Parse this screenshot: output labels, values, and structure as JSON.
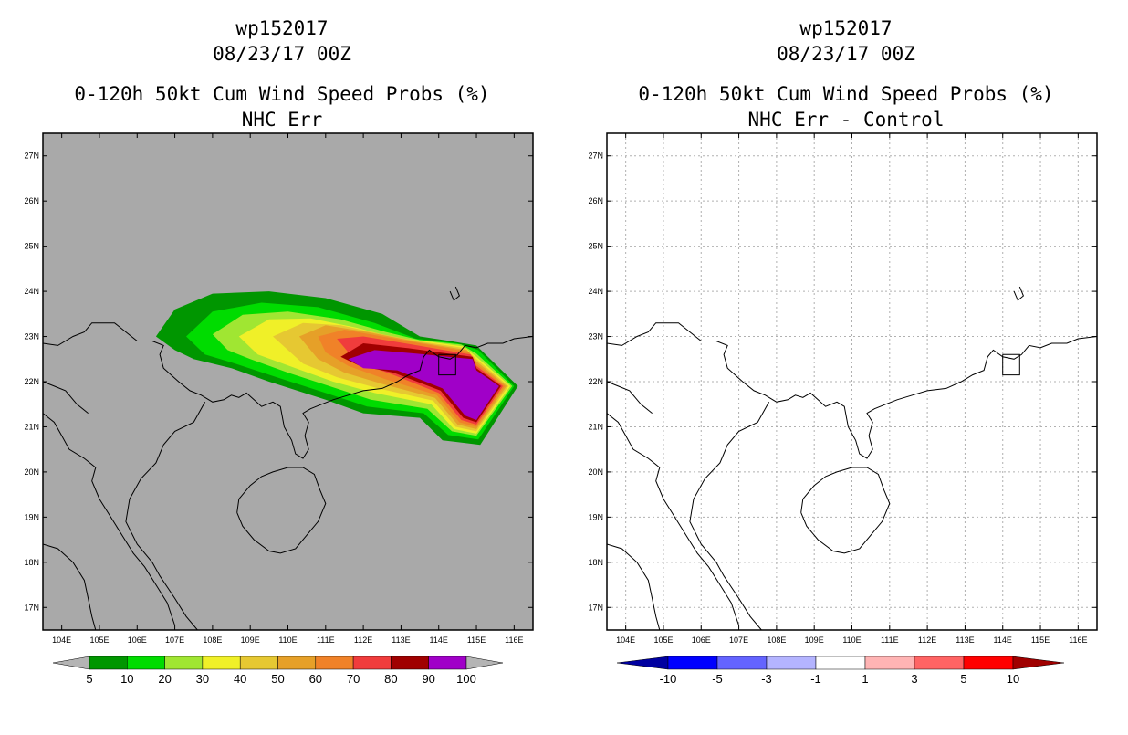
{
  "left_panel": {
    "title_line1": "wp152017",
    "title_line2": "08/23/17 00Z",
    "title_line3": "0-120h 50kt Cum Wind Speed Probs (%)",
    "title_line4": "NHC Err",
    "background_color": "#a9a9a9",
    "colorbar_labels": [
      "5",
      "10",
      "20",
      "30",
      "40",
      "50",
      "60",
      "70",
      "80",
      "90",
      "100"
    ],
    "colorbar_colors": [
      "#009600",
      "#00dc00",
      "#a0e632",
      "#f0f028",
      "#e6c832",
      "#e6a028",
      "#f08228",
      "#f03c3c",
      "#a00000",
      "#a000c8"
    ],
    "colorbar_end_color": "#b4b4b4"
  },
  "right_panel": {
    "title_line1": "wp152017",
    "title_line2": "08/23/17 00Z",
    "title_line3": "0-120h 50kt Cum Wind Speed Probs (%)",
    "title_line4": "NHC Err - Control",
    "background_color": "#ffffff",
    "colorbar_labels": [
      "-10",
      "-5",
      "-3",
      "-1",
      "1",
      "3",
      "5",
      "10"
    ],
    "colorbar_colors": [
      "#0000a0",
      "#0000ff",
      "#6464ff",
      "#b4b4ff",
      "#ffffff",
      "#ffb4b4",
      "#ff6464",
      "#ff0000",
      "#a00000"
    ]
  },
  "map_axes": {
    "lon_labels": [
      "104E",
      "105E",
      "106E",
      "107E",
      "108E",
      "109E",
      "110E",
      "111E",
      "112E",
      "113E",
      "114E",
      "115E",
      "116E"
    ],
    "lat_labels": [
      "17N",
      "18N",
      "19N",
      "20N",
      "21N",
      "22N",
      "23N",
      "24N",
      "25N",
      "26N",
      "27N"
    ],
    "lon_range": [
      103.5,
      116.5
    ],
    "lat_range": [
      16.5,
      27.5
    ]
  },
  "probability_field": {
    "levels": [
      {
        "name": "5",
        "color": "#009600",
        "outline": [
          [
            106.5,
            23.0
          ],
          [
            107.0,
            23.6
          ],
          [
            108.0,
            23.95
          ],
          [
            109.5,
            24.0
          ],
          [
            111.0,
            23.85
          ],
          [
            112.5,
            23.5
          ],
          [
            113.5,
            23.0
          ],
          [
            114.3,
            22.9
          ],
          [
            115.0,
            22.8
          ],
          [
            116.1,
            21.9
          ],
          [
            115.1,
            20.6
          ],
          [
            114.1,
            20.7
          ],
          [
            113.5,
            21.2
          ],
          [
            112.0,
            21.3
          ],
          [
            111.0,
            21.6
          ],
          [
            109.5,
            22.0
          ],
          [
            108.5,
            22.3
          ],
          [
            107.5,
            22.5
          ],
          [
            107.0,
            22.7
          ]
        ]
      },
      {
        "name": "10",
        "color": "#00dc00",
        "outline": [
          [
            107.3,
            23.0
          ],
          [
            108.0,
            23.55
          ],
          [
            109.3,
            23.75
          ],
          [
            110.8,
            23.65
          ],
          [
            112.3,
            23.3
          ],
          [
            113.4,
            22.95
          ],
          [
            114.5,
            22.85
          ],
          [
            115.05,
            22.7
          ],
          [
            116.0,
            21.9
          ],
          [
            115.05,
            20.72
          ],
          [
            114.25,
            20.82
          ],
          [
            113.6,
            21.3
          ],
          [
            112.1,
            21.45
          ],
          [
            111.0,
            21.75
          ],
          [
            109.7,
            22.1
          ],
          [
            108.6,
            22.4
          ],
          [
            107.8,
            22.6
          ]
        ]
      },
      {
        "name": "20",
        "color": "#a0e632",
        "outline": [
          [
            108.0,
            23.05
          ],
          [
            108.8,
            23.48
          ],
          [
            110.0,
            23.55
          ],
          [
            111.4,
            23.38
          ],
          [
            112.6,
            23.1
          ],
          [
            113.5,
            22.92
          ],
          [
            114.6,
            22.82
          ],
          [
            115.0,
            22.62
          ],
          [
            115.95,
            21.9
          ],
          [
            115.0,
            20.8
          ],
          [
            114.35,
            20.9
          ],
          [
            113.7,
            21.4
          ],
          [
            112.2,
            21.6
          ],
          [
            111.1,
            21.9
          ],
          [
            110.0,
            22.2
          ],
          [
            109.0,
            22.5
          ],
          [
            108.4,
            22.7
          ]
        ]
      },
      {
        "name": "30",
        "color": "#f0f028",
        "outline": [
          [
            108.7,
            23.0
          ],
          [
            109.5,
            23.38
          ],
          [
            110.6,
            23.4
          ],
          [
            111.8,
            23.2
          ],
          [
            112.8,
            22.98
          ],
          [
            113.6,
            22.9
          ],
          [
            114.65,
            22.78
          ],
          [
            115.0,
            22.55
          ],
          [
            115.9,
            21.9
          ],
          [
            115.0,
            20.85
          ],
          [
            114.4,
            20.95
          ],
          [
            113.8,
            21.5
          ],
          [
            112.3,
            21.75
          ],
          [
            111.2,
            22.0
          ],
          [
            110.2,
            22.3
          ],
          [
            109.2,
            22.6
          ]
        ]
      },
      {
        "name": "40",
        "color": "#e6c832",
        "outline": [
          [
            109.6,
            23.0
          ],
          [
            110.4,
            23.3
          ],
          [
            111.4,
            23.25
          ],
          [
            112.5,
            23.05
          ],
          [
            113.6,
            22.88
          ],
          [
            114.7,
            22.74
          ],
          [
            115.0,
            22.5
          ],
          [
            115.85,
            21.9
          ],
          [
            115.0,
            20.9
          ],
          [
            114.45,
            21.0
          ],
          [
            113.85,
            21.58
          ],
          [
            112.4,
            21.85
          ],
          [
            111.3,
            22.1
          ],
          [
            110.4,
            22.4
          ]
        ]
      },
      {
        "name": "50",
        "color": "#e6a028",
        "outline": [
          [
            110.3,
            23.0
          ],
          [
            111.0,
            23.25
          ],
          [
            112.1,
            23.1
          ],
          [
            113.5,
            22.87
          ],
          [
            114.75,
            22.7
          ],
          [
            115.0,
            22.45
          ],
          [
            115.8,
            21.9
          ],
          [
            115.0,
            20.95
          ],
          [
            114.5,
            21.05
          ],
          [
            113.9,
            21.64
          ],
          [
            112.5,
            21.95
          ],
          [
            111.5,
            22.2
          ],
          [
            110.8,
            22.5
          ]
        ]
      },
      {
        "name": "60",
        "color": "#f08228",
        "outline": [
          [
            110.8,
            23.0
          ],
          [
            111.5,
            23.15
          ],
          [
            112.5,
            23.0
          ],
          [
            113.5,
            22.85
          ],
          [
            114.8,
            22.66
          ],
          [
            115.0,
            22.4
          ],
          [
            115.75,
            21.9
          ],
          [
            115.0,
            21.0
          ],
          [
            114.55,
            21.1
          ],
          [
            113.95,
            21.7
          ],
          [
            112.6,
            22.05
          ],
          [
            111.6,
            22.35
          ],
          [
            111.0,
            22.65
          ]
        ]
      },
      {
        "name": "70",
        "color": "#f03c3c",
        "outline": [
          [
            111.3,
            22.95
          ],
          [
            112.0,
            23.0
          ],
          [
            113.3,
            22.82
          ],
          [
            114.85,
            22.6
          ],
          [
            115.0,
            22.35
          ],
          [
            115.7,
            21.9
          ],
          [
            115.0,
            21.05
          ],
          [
            114.6,
            21.15
          ],
          [
            114.0,
            21.75
          ],
          [
            112.8,
            22.15
          ],
          [
            111.8,
            22.45
          ]
        ]
      },
      {
        "name": "80",
        "color": "#a00000",
        "outline": [
          [
            111.4,
            22.55
          ],
          [
            112.0,
            22.85
          ],
          [
            113.2,
            22.74
          ],
          [
            114.9,
            22.55
          ],
          [
            115.0,
            22.3
          ],
          [
            115.65,
            21.9
          ],
          [
            115.0,
            21.1
          ],
          [
            114.65,
            21.2
          ],
          [
            114.05,
            21.8
          ],
          [
            112.8,
            22.2
          ],
          [
            111.9,
            22.35
          ]
        ]
      },
      {
        "name": "90",
        "color": "#a000c8",
        "outline": [
          [
            111.6,
            22.5
          ],
          [
            112.3,
            22.7
          ],
          [
            113.4,
            22.62
          ],
          [
            114.9,
            22.5
          ],
          [
            115.0,
            22.25
          ],
          [
            115.6,
            21.9
          ],
          [
            115.0,
            21.15
          ],
          [
            114.7,
            21.25
          ],
          [
            114.1,
            21.85
          ],
          [
            112.9,
            22.25
          ],
          [
            112.0,
            22.3
          ]
        ]
      }
    ]
  },
  "coastlines": [
    [
      [
        103.5,
        22.85
      ],
      [
        103.9,
        22.8
      ],
      [
        104.3,
        23.0
      ],
      [
        104.6,
        23.1
      ],
      [
        104.8,
        23.3
      ],
      [
        105.1,
        23.3
      ],
      [
        105.4,
        23.3
      ],
      [
        105.7,
        23.1
      ],
      [
        106.0,
        22.9
      ],
      [
        106.4,
        22.9
      ],
      [
        106.7,
        22.8
      ],
      [
        106.6,
        22.6
      ],
      [
        106.7,
        22.3
      ],
      [
        107.1,
        22.0
      ],
      [
        107.4,
        21.8
      ],
      [
        107.7,
        21.7
      ],
      [
        108.0,
        21.55
      ],
      [
        108.3,
        21.6
      ],
      [
        108.5,
        21.7
      ],
      [
        108.7,
        21.65
      ],
      [
        108.9,
        21.75
      ],
      [
        109.1,
        21.6
      ],
      [
        109.3,
        21.45
      ],
      [
        109.6,
        21.55
      ],
      [
        109.8,
        21.45
      ],
      [
        109.9,
        21.0
      ],
      [
        110.1,
        20.7
      ],
      [
        110.2,
        20.4
      ],
      [
        110.4,
        20.3
      ],
      [
        110.55,
        20.5
      ],
      [
        110.45,
        20.8
      ],
      [
        110.55,
        21.1
      ],
      [
        110.4,
        21.3
      ],
      [
        110.6,
        21.4
      ],
      [
        110.9,
        21.5
      ],
      [
        111.2,
        21.6
      ],
      [
        111.6,
        21.7
      ],
      [
        112.0,
        21.8
      ],
      [
        112.5,
        21.85
      ],
      [
        112.9,
        22.0
      ],
      [
        113.2,
        22.15
      ],
      [
        113.5,
        22.25
      ],
      [
        113.6,
        22.55
      ],
      [
        113.75,
        22.7
      ],
      [
        114.0,
        22.55
      ],
      [
        114.3,
        22.5
      ],
      [
        114.5,
        22.6
      ],
      [
        114.7,
        22.8
      ],
      [
        115.0,
        22.75
      ],
      [
        115.3,
        22.85
      ],
      [
        115.7,
        22.85
      ],
      [
        116.0,
        22.95
      ],
      [
        116.5,
        23.0
      ]
    ],
    [
      [
        108.65,
        19.1
      ],
      [
        108.7,
        19.4
      ],
      [
        109.0,
        19.7
      ],
      [
        109.3,
        19.9
      ],
      [
        109.6,
        20.0
      ],
      [
        110.0,
        20.1
      ],
      [
        110.4,
        20.1
      ],
      [
        110.7,
        19.95
      ],
      [
        110.85,
        19.6
      ],
      [
        111.0,
        19.3
      ],
      [
        110.8,
        18.9
      ],
      [
        110.5,
        18.6
      ],
      [
        110.2,
        18.3
      ],
      [
        109.8,
        18.2
      ],
      [
        109.5,
        18.25
      ],
      [
        109.1,
        18.5
      ],
      [
        108.8,
        18.8
      ],
      [
        108.65,
        19.1
      ]
    ],
    [
      [
        107.8,
        21.55
      ],
      [
        107.5,
        21.1
      ],
      [
        107.0,
        20.9
      ],
      [
        106.7,
        20.6
      ],
      [
        106.5,
        20.2
      ],
      [
        106.1,
        19.85
      ],
      [
        105.8,
        19.4
      ],
      [
        105.7,
        18.9
      ],
      [
        106.0,
        18.4
      ],
      [
        106.4,
        18.0
      ],
      [
        106.6,
        17.7
      ],
      [
        107.0,
        17.2
      ],
      [
        107.3,
        16.8
      ],
      [
        107.6,
        16.5
      ]
    ],
    [
      [
        103.5,
        21.3
      ],
      [
        103.8,
        21.1
      ],
      [
        104.0,
        20.8
      ],
      [
        104.2,
        20.5
      ],
      [
        104.6,
        20.3
      ],
      [
        104.9,
        20.1
      ],
      [
        104.8,
        19.8
      ],
      [
        105.0,
        19.4
      ],
      [
        105.3,
        19.0
      ],
      [
        105.6,
        18.6
      ],
      [
        105.9,
        18.2
      ],
      [
        106.2,
        17.9
      ],
      [
        106.5,
        17.5
      ],
      [
        106.8,
        17.1
      ],
      [
        107.0,
        16.6
      ]
    ],
    [
      [
        103.5,
        18.4
      ],
      [
        103.9,
        18.3
      ],
      [
        104.3,
        18.0
      ],
      [
        104.6,
        17.6
      ],
      [
        104.7,
        17.2
      ],
      [
        104.8,
        16.8
      ],
      [
        104.9,
        16.5
      ]
    ],
    [
      [
        103.5,
        22.0
      ],
      [
        103.8,
        21.9
      ],
      [
        104.1,
        21.8
      ],
      [
        104.4,
        21.5
      ],
      [
        104.7,
        21.3
      ]
    ],
    [
      [
        114.0,
        22.6
      ],
      [
        114.0,
        22.15
      ],
      [
        114.45,
        22.15
      ],
      [
        114.45,
        22.6
      ],
      [
        114.0,
        22.6
      ]
    ],
    [
      [
        114.3,
        24.0
      ],
      [
        114.4,
        23.8
      ],
      [
        114.55,
        23.9
      ],
      [
        114.45,
        24.1
      ]
    ]
  ]
}
